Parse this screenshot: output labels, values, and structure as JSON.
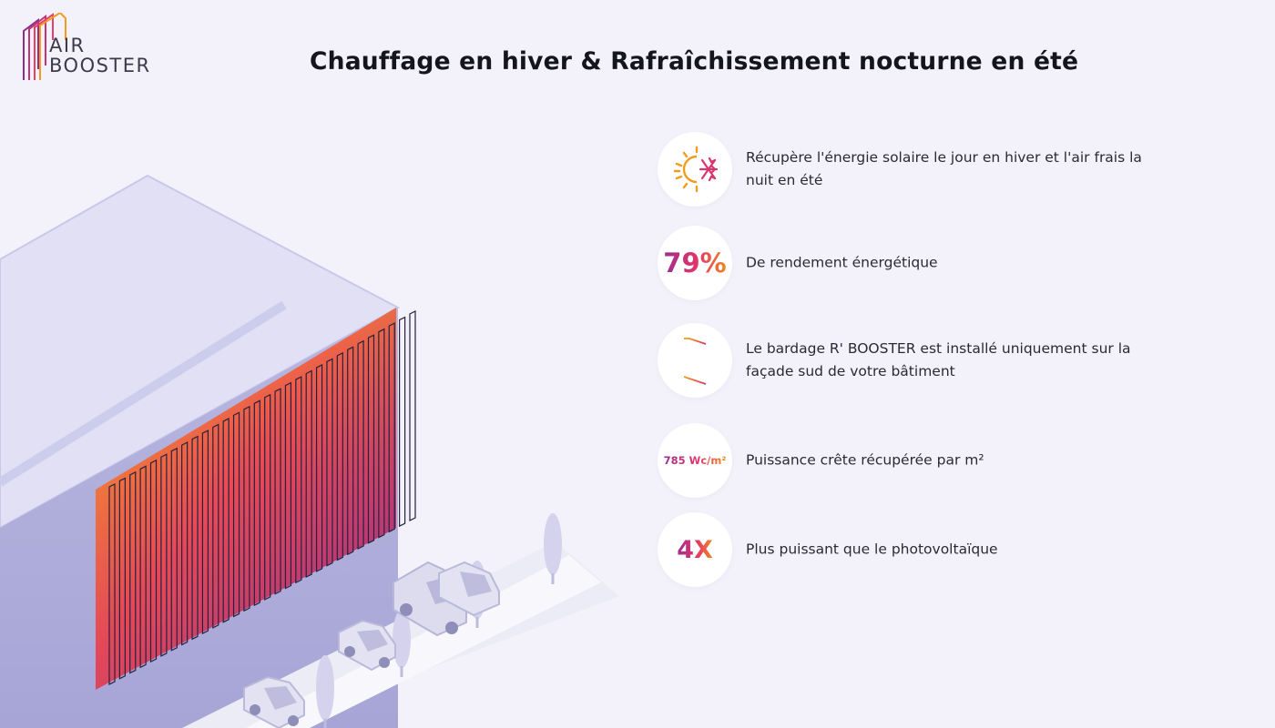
{
  "logo": {
    "line1": "AIR",
    "line2": "BOOSTER",
    "colors": [
      "#8b2f8b",
      "#d9356e",
      "#f39b1e"
    ]
  },
  "title": "Chauffage en hiver & Rafraîchissement nocturne en été",
  "features": [
    {
      "icon": "sun-snowflake-icon",
      "text": "Récupère l'énergie solaire le jour en hiver et l'air frais la nuit en été"
    },
    {
      "stat": "79%",
      "text": "De rendement énergétique"
    },
    {
      "icon": "cladding-panels-icon",
      "text": "Le bardage R' BOOSTER est installé uniquement sur la façade sud de votre bâtiment"
    },
    {
      "stat": "785 Wc/m²",
      "text": "Puissance crête récupérée par m²"
    },
    {
      "stat": "4X",
      "text": "Plus puissant que le photovoltaïque"
    }
  ],
  "colors": {
    "background": "#f3f2fa",
    "gradient_start": "#9a2f8e",
    "gradient_mid": "#e4356a",
    "gradient_end": "#f0891f"
  }
}
